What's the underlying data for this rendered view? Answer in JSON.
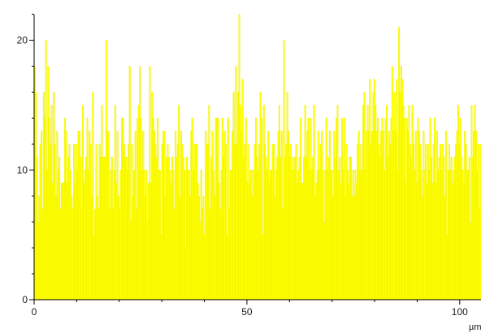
{
  "chart_data": {
    "type": "bar",
    "title": "",
    "xlabel": "µm",
    "ylabel": "",
    "xlim": [
      0,
      105
    ],
    "ylim": [
      0,
      22.6
    ],
    "x_ticks": [
      0,
      50,
      100
    ],
    "x_tick_labels": [
      "0",
      "50",
      "100"
    ],
    "x_minor_step": 10,
    "y_ticks": [
      0,
      10,
      20
    ],
    "y_tick_labels": [
      "0",
      "10",
      "20"
    ],
    "y_minor_step": 2,
    "grid": false,
    "bar_color": "#ffff00",
    "bar_edge_color": "#e2e200",
    "series": [
      {
        "values": [
          18,
          16,
          11,
          6,
          8,
          12,
          13,
          7,
          16,
          14,
          20,
          10,
          18,
          14,
          12,
          15,
          9,
          16,
          12,
          8,
          13,
          10,
          11,
          7,
          9,
          9,
          9,
          14,
          13,
          9,
          11,
          12,
          10,
          8,
          7,
          12,
          9,
          12,
          10,
          13,
          13,
          11,
          7,
          15,
          9,
          10,
          11,
          14,
          10,
          13,
          12,
          8,
          16,
          5,
          7,
          12,
          8,
          7,
          12,
          11,
          15,
          11,
          11,
          11,
          20,
          13,
          13,
          7,
          10,
          11,
          7,
          10,
          15,
          9,
          13,
          8,
          7,
          10,
          14,
          14,
          12,
          11,
          11,
          10,
          12,
          18,
          6,
          12,
          8,
          10,
          13,
          7,
          14,
          15,
          18,
          14,
          10,
          13,
          10,
          8,
          10,
          6,
          9,
          18,
          9,
          16,
          14,
          13,
          12,
          11,
          14,
          10,
          10,
          5,
          12,
          13,
          13,
          8,
          11,
          12,
          11,
          10,
          9,
          11,
          10,
          7,
          13,
          11,
          12,
          15,
          8,
          13,
          12,
          11,
          10,
          4,
          11,
          10,
          10,
          8,
          13,
          14,
          10,
          12,
          12,
          12,
          9,
          8,
          6,
          10,
          7,
          8,
          5,
          13,
          12,
          12,
          15,
          7,
          11,
          13,
          10,
          8,
          14,
          14,
          14,
          9,
          7,
          10,
          14,
          11,
          13,
          12,
          5,
          14,
          7,
          10,
          10,
          13,
          16,
          12,
          18,
          12,
          16,
          22,
          15,
          13,
          17,
          11,
          12,
          14,
          9,
          12,
          9,
          10,
          10,
          8,
          10,
          12,
          14,
          11,
          10,
          12,
          16,
          14,
          5,
          15,
          12,
          11,
          10,
          13,
          9,
          10,
          10,
          12,
          12,
          8,
          10,
          11,
          13,
          15,
          11,
          13,
          7,
          20,
          11,
          12,
          16,
          13,
          11,
          12,
          10,
          11,
          10,
          11,
          12,
          9,
          10,
          11,
          14,
          9,
          9,
          11,
          15,
          11,
          13,
          14,
          10,
          14,
          10,
          11,
          15,
          8,
          9,
          10,
          13,
          10,
          12,
          13,
          10,
          6,
          10,
          14,
          10,
          11,
          13,
          10,
          10,
          8,
          13,
          11,
          14,
          15,
          10,
          11,
          9,
          14,
          10,
          14,
          8,
          12,
          10,
          9,
          11,
          11,
          8,
          10,
          8,
          10,
          9,
          12,
          13,
          10,
          12,
          10,
          15,
          16,
          10,
          13,
          15,
          13,
          17,
          12,
          13,
          16,
          17,
          15,
          13,
          14,
          12,
          11,
          13,
          14,
          13,
          10,
          14,
          15,
          11,
          13,
          12,
          14,
          18,
          13,
          16,
          13,
          17,
          10,
          21,
          16,
          18,
          17,
          15,
          14,
          9,
          14,
          13,
          15,
          12,
          11,
          15,
          12,
          10,
          13,
          9,
          14,
          13,
          12,
          10,
          8,
          13,
          10,
          12,
          9,
          12,
          10,
          14,
          11,
          9,
          12,
          14,
          9,
          13,
          10,
          11,
          12,
          10,
          12,
          11,
          8,
          13,
          5,
          10,
          12,
          10,
          11,
          9,
          10,
          11,
          12,
          13,
          15,
          12,
          14,
          11,
          10,
          9,
          13,
          12,
          10,
          10,
          11,
          6,
          15,
          11,
          13,
          15,
          13,
          10,
          12,
          7,
          12
        ]
      }
    ]
  }
}
